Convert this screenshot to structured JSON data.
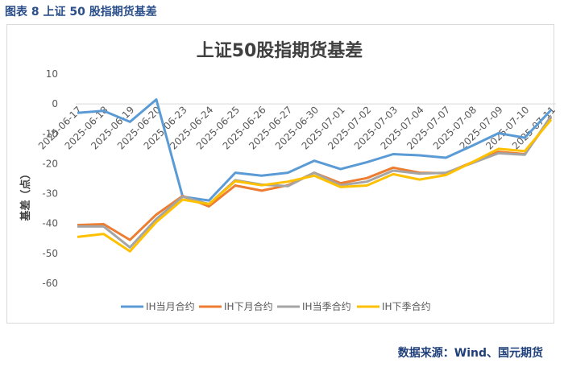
{
  "figure_label": "图表 8  上证 50 股指期货基差",
  "source": "数据来源：Wind、国元期货",
  "colors": {
    "caption": "#2a4e8a",
    "axis": "#d9d9d9",
    "text": "#595959"
  },
  "chart_data": {
    "type": "line",
    "title": "上证50股指期货基差",
    "xlabel": "",
    "ylabel": "基差（点）",
    "ylim": [
      -60,
      10
    ],
    "yticks": [
      10,
      0,
      -10,
      -20,
      -30,
      -40,
      -50,
      -60
    ],
    "x": [
      "2025-06-17",
      "2025-06-18",
      "2025-06-19",
      "2025-06-20",
      "2025-06-23",
      "2025-06-24",
      "2025-06-25",
      "2025-06-26",
      "2025-06-27",
      "2025-06-30",
      "2025-07-01",
      "2025-07-02",
      "2025-07-03",
      "2025-07-04",
      "2025-07-07",
      "2025-07-08",
      "2025-07-09",
      "2025-07-10",
      "2025-07-11"
    ],
    "grid": false,
    "legend_position": "bottom",
    "series": [
      {
        "name": "IH当月合约",
        "color": "#5b9bd5",
        "values": [
          -3.0,
          -2.3,
          -6.0,
          1.5,
          -31.0,
          -32.3,
          -23.0,
          -24.0,
          -23.0,
          -19.0,
          -21.8,
          -19.5,
          -16.8,
          -17.2,
          -18.0,
          -14.0,
          -9.8,
          -11.3,
          -2.0
        ]
      },
      {
        "name": "IH下月合约",
        "color": "#ed7d31",
        "values": [
          -40.5,
          -40.2,
          -45.5,
          -37.0,
          -30.8,
          -34.3,
          -27.3,
          -29.0,
          -27.2,
          -23.0,
          -26.5,
          -24.8,
          -21.3,
          -23.0,
          -23.2,
          -19.5,
          -16.0,
          -16.8,
          -4.5
        ]
      },
      {
        "name": "IH当季合约",
        "color": "#a5a5a5",
        "values": [
          -41.0,
          -41.0,
          -48.0,
          -38.5,
          -31.0,
          -33.5,
          -25.5,
          -27.0,
          -27.5,
          -23.0,
          -27.2,
          -26.0,
          -22.3,
          -23.3,
          -23.0,
          -19.8,
          -16.5,
          -17.0,
          -4.0
        ]
      },
      {
        "name": "IH下季合约",
        "color": "#ffc000",
        "values": [
          -44.5,
          -43.5,
          -49.3,
          -39.5,
          -32.0,
          -33.5,
          -25.8,
          -27.2,
          -26.0,
          -24.0,
          -27.8,
          -27.3,
          -23.5,
          -25.3,
          -23.8,
          -19.5,
          -15.0,
          -15.8,
          -5.3
        ]
      }
    ]
  }
}
